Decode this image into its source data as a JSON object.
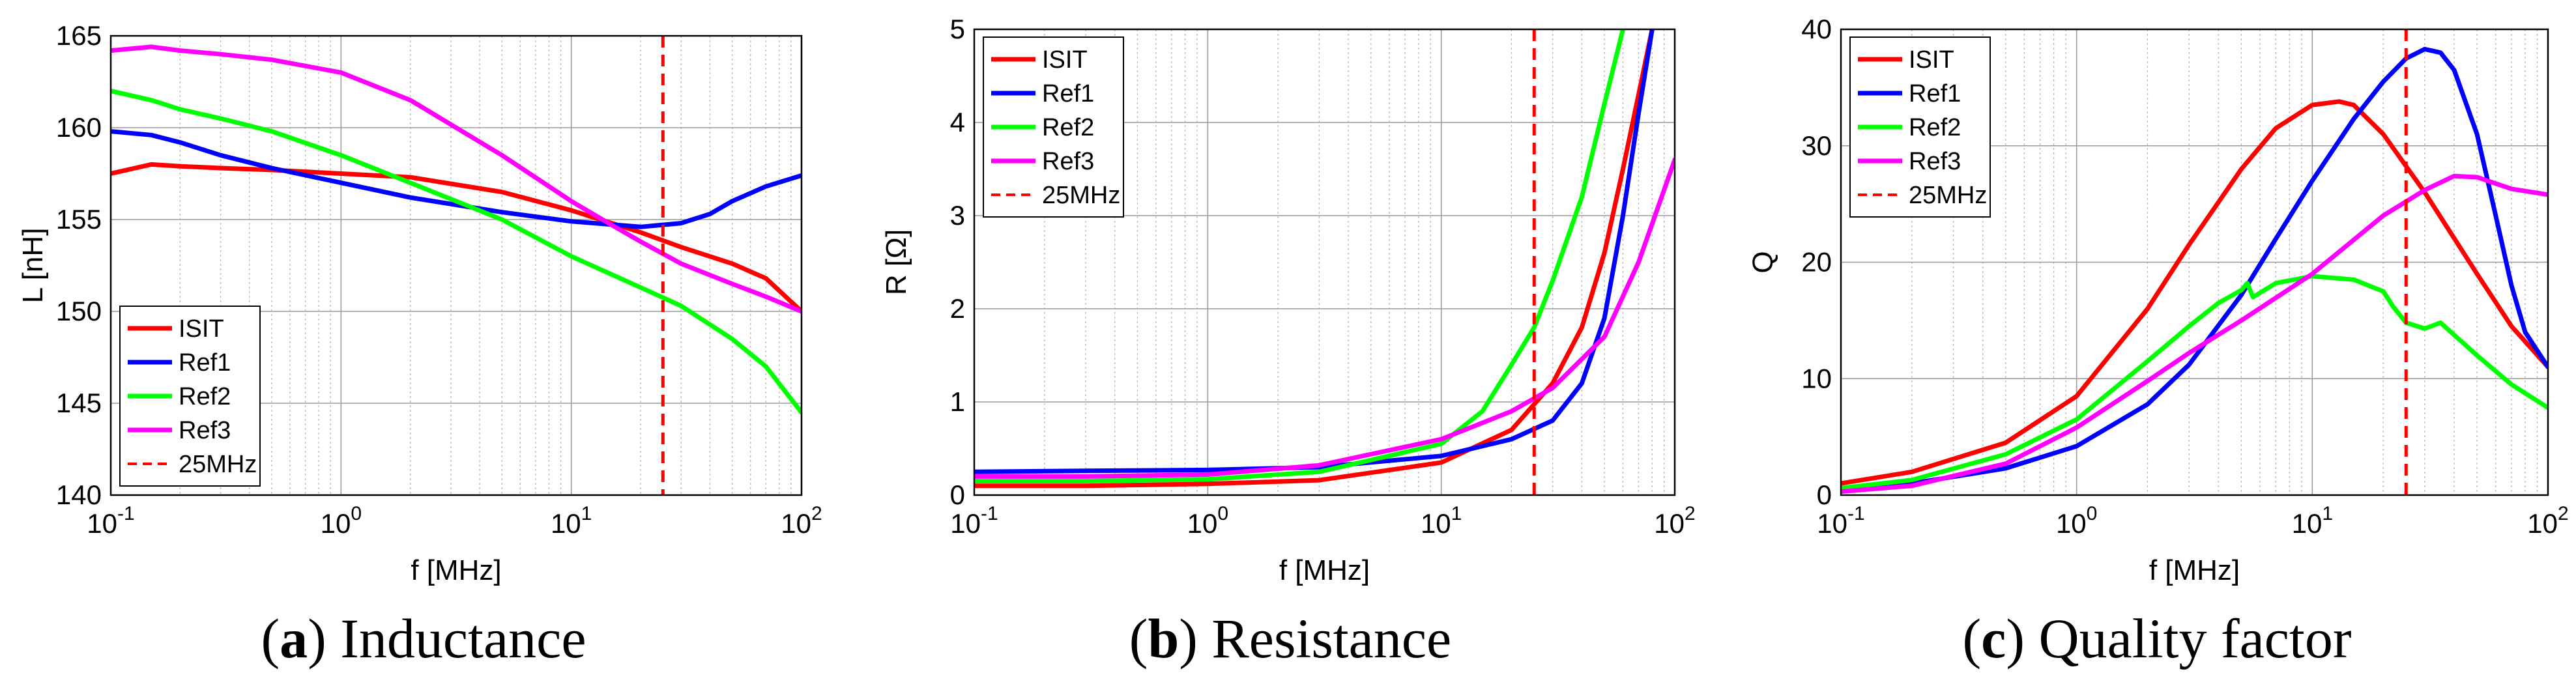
{
  "chart_data": [
    {
      "type": "line",
      "caption_letter": "a",
      "caption_text": "Inductance",
      "xlabel": "f [MHz]",
      "ylabel": "L [nH]",
      "xscale": "log",
      "xlim": [
        0.1,
        100
      ],
      "ylim": [
        140,
        165
      ],
      "yticks": [
        "140",
        "145",
        "150",
        "155",
        "160",
        "165"
      ],
      "xticks": [
        {
          "base": "10",
          "exp": "-1"
        },
        {
          "base": "10",
          "exp": "0"
        },
        {
          "base": "10",
          "exp": "1"
        },
        {
          "base": "10",
          "exp": "2"
        }
      ],
      "grid": true,
      "legend_position": "bottom-left",
      "marker_line": {
        "x": 25,
        "label": "25MHz"
      },
      "series": [
        {
          "name": "ISIT",
          "color": "#ff0000",
          "x": [
            0.1,
            0.15,
            0.2,
            0.3,
            0.5,
            1,
            2,
            5,
            10,
            20,
            30,
            50,
            70,
            100
          ],
          "y": [
            157.5,
            158.0,
            157.9,
            157.8,
            157.7,
            157.5,
            157.3,
            156.5,
            155.5,
            154.3,
            153.5,
            152.6,
            151.8,
            150.0
          ]
        },
        {
          "name": "Ref1",
          "color": "#0000ff",
          "x": [
            0.1,
            0.15,
            0.2,
            0.3,
            0.5,
            1,
            2,
            5,
            10,
            20,
            30,
            40,
            50,
            70,
            100
          ],
          "y": [
            159.8,
            159.6,
            159.2,
            158.5,
            157.8,
            157.0,
            156.2,
            155.4,
            154.9,
            154.6,
            154.8,
            155.3,
            156.0,
            156.8,
            157.4
          ]
        },
        {
          "name": "Ref2",
          "color": "#00ff00",
          "x": [
            0.1,
            0.15,
            0.2,
            0.3,
            0.5,
            1,
            2,
            5,
            10,
            20,
            30,
            50,
            70,
            100
          ],
          "y": [
            162.0,
            161.5,
            161.0,
            160.5,
            159.8,
            158.5,
            157.0,
            155.0,
            153.0,
            151.3,
            150.3,
            148.5,
            147.0,
            144.5
          ]
        },
        {
          "name": "Ref3",
          "color": "#ff00ff",
          "x": [
            0.1,
            0.15,
            0.2,
            0.3,
            0.5,
            1,
            2,
            5,
            10,
            15,
            20,
            30,
            50,
            70,
            100
          ],
          "y": [
            164.2,
            164.4,
            164.2,
            164.0,
            163.7,
            163.0,
            161.5,
            158.5,
            156.0,
            154.7,
            153.8,
            152.6,
            151.5,
            150.8,
            150.0
          ]
        }
      ]
    },
    {
      "type": "line",
      "caption_letter": "b",
      "caption_text": "Resistance",
      "xlabel": "f [MHz]",
      "ylabel": "R [Ω]",
      "xscale": "log",
      "xlim": [
        0.1,
        100
      ],
      "ylim": [
        0,
        5
      ],
      "yticks": [
        "0",
        "1",
        "2",
        "3",
        "4",
        "5"
      ],
      "xticks": [
        {
          "base": "10",
          "exp": "-1"
        },
        {
          "base": "10",
          "exp": "0"
        },
        {
          "base": "10",
          "exp": "1"
        },
        {
          "base": "10",
          "exp": "2"
        }
      ],
      "grid": true,
      "legend_position": "top-left",
      "marker_line": {
        "x": 25,
        "label": "25MHz"
      },
      "series": [
        {
          "name": "ISIT",
          "color": "#ff0000",
          "x": [
            0.1,
            0.3,
            1,
            3,
            10,
            20,
            30,
            40,
            50,
            60,
            70,
            80
          ],
          "y": [
            0.1,
            0.1,
            0.12,
            0.16,
            0.35,
            0.7,
            1.2,
            1.8,
            2.6,
            3.5,
            4.3,
            5.0
          ]
        },
        {
          "name": "Ref1",
          "color": "#0000ff",
          "x": [
            0.1,
            0.3,
            1,
            3,
            10,
            20,
            30,
            40,
            50,
            60,
            70,
            80
          ],
          "y": [
            0.25,
            0.26,
            0.27,
            0.3,
            0.42,
            0.6,
            0.8,
            1.2,
            1.9,
            3.0,
            4.1,
            5.0
          ]
        },
        {
          "name": "Ref2",
          "color": "#00ff00",
          "x": [
            0.1,
            0.3,
            1,
            3,
            10,
            15,
            20,
            25,
            30,
            40,
            50,
            60
          ],
          "y": [
            0.15,
            0.15,
            0.17,
            0.25,
            0.55,
            0.9,
            1.4,
            1.8,
            2.3,
            3.2,
            4.2,
            5.0
          ]
        },
        {
          "name": "Ref3",
          "color": "#ff00ff",
          "x": [
            0.1,
            0.3,
            1,
            3,
            10,
            20,
            30,
            50,
            70,
            100
          ],
          "y": [
            0.2,
            0.2,
            0.22,
            0.32,
            0.6,
            0.9,
            1.15,
            1.7,
            2.5,
            3.6
          ]
        }
      ]
    },
    {
      "type": "line",
      "caption_letter": "c",
      "caption_text": "Quality factor",
      "xlabel": "f [MHz]",
      "ylabel": "Q",
      "xscale": "log",
      "xlim": [
        0.1,
        100
      ],
      "ylim": [
        0,
        40
      ],
      "yticks": [
        "0",
        "10",
        "20",
        "30",
        "40"
      ],
      "xticks": [
        {
          "base": "10",
          "exp": "-1"
        },
        {
          "base": "10",
          "exp": "0"
        },
        {
          "base": "10",
          "exp": "1"
        },
        {
          "base": "10",
          "exp": "2"
        }
      ],
      "grid": true,
      "legend_position": "top-left",
      "marker_line": {
        "x": 25,
        "label": "25MHz"
      },
      "series": [
        {
          "name": "ISIT",
          "color": "#ff0000",
          "x": [
            0.1,
            0.2,
            0.5,
            1,
            2,
            3,
            5,
            7,
            10,
            13,
            15,
            20,
            30,
            50,
            70,
            100
          ],
          "y": [
            1.0,
            2.0,
            4.5,
            8.5,
            16.0,
            21.5,
            28.0,
            31.5,
            33.5,
            33.8,
            33.5,
            31.0,
            26.0,
            19.0,
            14.5,
            11.0
          ]
        },
        {
          "name": "Ref1",
          "color": "#0000ff",
          "x": [
            0.1,
            0.2,
            0.5,
            1,
            2,
            3,
            5,
            7,
            10,
            15,
            20,
            25,
            30,
            35,
            40,
            50,
            60,
            70,
            80,
            100
          ],
          "y": [
            0.5,
            1.0,
            2.3,
            4.2,
            7.8,
            11.2,
            17.2,
            22.0,
            27.0,
            32.3,
            35.5,
            37.5,
            38.3,
            38.0,
            36.5,
            31.0,
            24.0,
            18.0,
            14.0,
            11.0
          ]
        },
        {
          "name": "Ref2",
          "color": "#00ff00",
          "x": [
            0.1,
            0.2,
            0.5,
            1,
            2,
            3,
            4,
            5,
            5.3,
            5.6,
            7,
            10,
            15,
            20,
            22,
            25,
            30,
            35,
            50,
            70,
            100
          ],
          "y": [
            0.6,
            1.3,
            3.5,
            6.5,
            11.5,
            14.5,
            16.5,
            17.6,
            18.2,
            17.0,
            18.2,
            18.8,
            18.5,
            17.5,
            16.2,
            14.8,
            14.3,
            14.8,
            12.0,
            9.5,
            7.5
          ]
        },
        {
          "name": "Ref3",
          "color": "#ff00ff",
          "x": [
            0.1,
            0.2,
            0.5,
            1,
            2,
            3,
            5,
            10,
            20,
            30,
            40,
            50,
            70,
            100
          ],
          "y": [
            0.3,
            0.8,
            2.7,
            5.8,
            9.8,
            12.2,
            15.0,
            19.0,
            24.0,
            26.2,
            27.4,
            27.3,
            26.3,
            25.8
          ]
        }
      ]
    }
  ]
}
